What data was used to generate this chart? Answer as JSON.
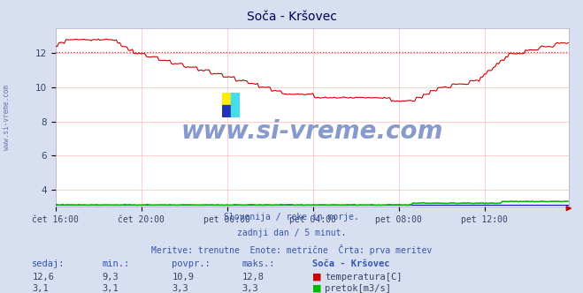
{
  "title": "Soča - Kršovec",
  "bg_color": "#d8dff0",
  "plot_bg_color": "#ffffff",
  "grid_color": "#ffbbbb",
  "grid_color_minor": "#ffeedd",
  "x_labels": [
    "čet 16:00",
    "čet 20:00",
    "pet 00:00",
    "pet 04:00",
    "pet 08:00",
    "pet 12:00"
  ],
  "x_tick_positions": [
    0,
    48,
    96,
    144,
    192,
    240
  ],
  "y_min": 3.0,
  "y_max": 13.5,
  "y_ticks": [
    4,
    6,
    8,
    10,
    12
  ],
  "dashed_line_y": 12.1,
  "temp_color": "#cc0000",
  "flow_color": "#00bb00",
  "height_color": "#0000cc",
  "watermark_text": "www.si-vreme.com",
  "watermark_color": "#8899cc",
  "footer_line1": "Slovenija / reke in morje.",
  "footer_line2": "zadnji dan / 5 minut.",
  "footer_line3": "Meritve: trenutne  Enote: metrične  Črta: prva meritev",
  "footer_color": "#3355aa",
  "stats_color": "#3355aa",
  "stats_val_color": "#334466",
  "stats_header": [
    "sedaj:",
    "min.:",
    "povpr.:",
    "maks.:",
    "Soča - Kršovec"
  ],
  "stats_temp": [
    "12,6",
    "9,3",
    "10,9",
    "12,8"
  ],
  "stats_flow": [
    "3,1",
    "3,1",
    "3,3",
    "3,3"
  ],
  "legend_temp": "temperatura[C]",
  "legend_flow": "pretok[m3/s]",
  "sidebar_text": "www.si-vreme.com",
  "sidebar_color": "#6677aa",
  "n_points": 288,
  "icon_yellow": "#ffee00",
  "icon_cyan": "#44ddee",
  "icon_blue": "#2233bb"
}
